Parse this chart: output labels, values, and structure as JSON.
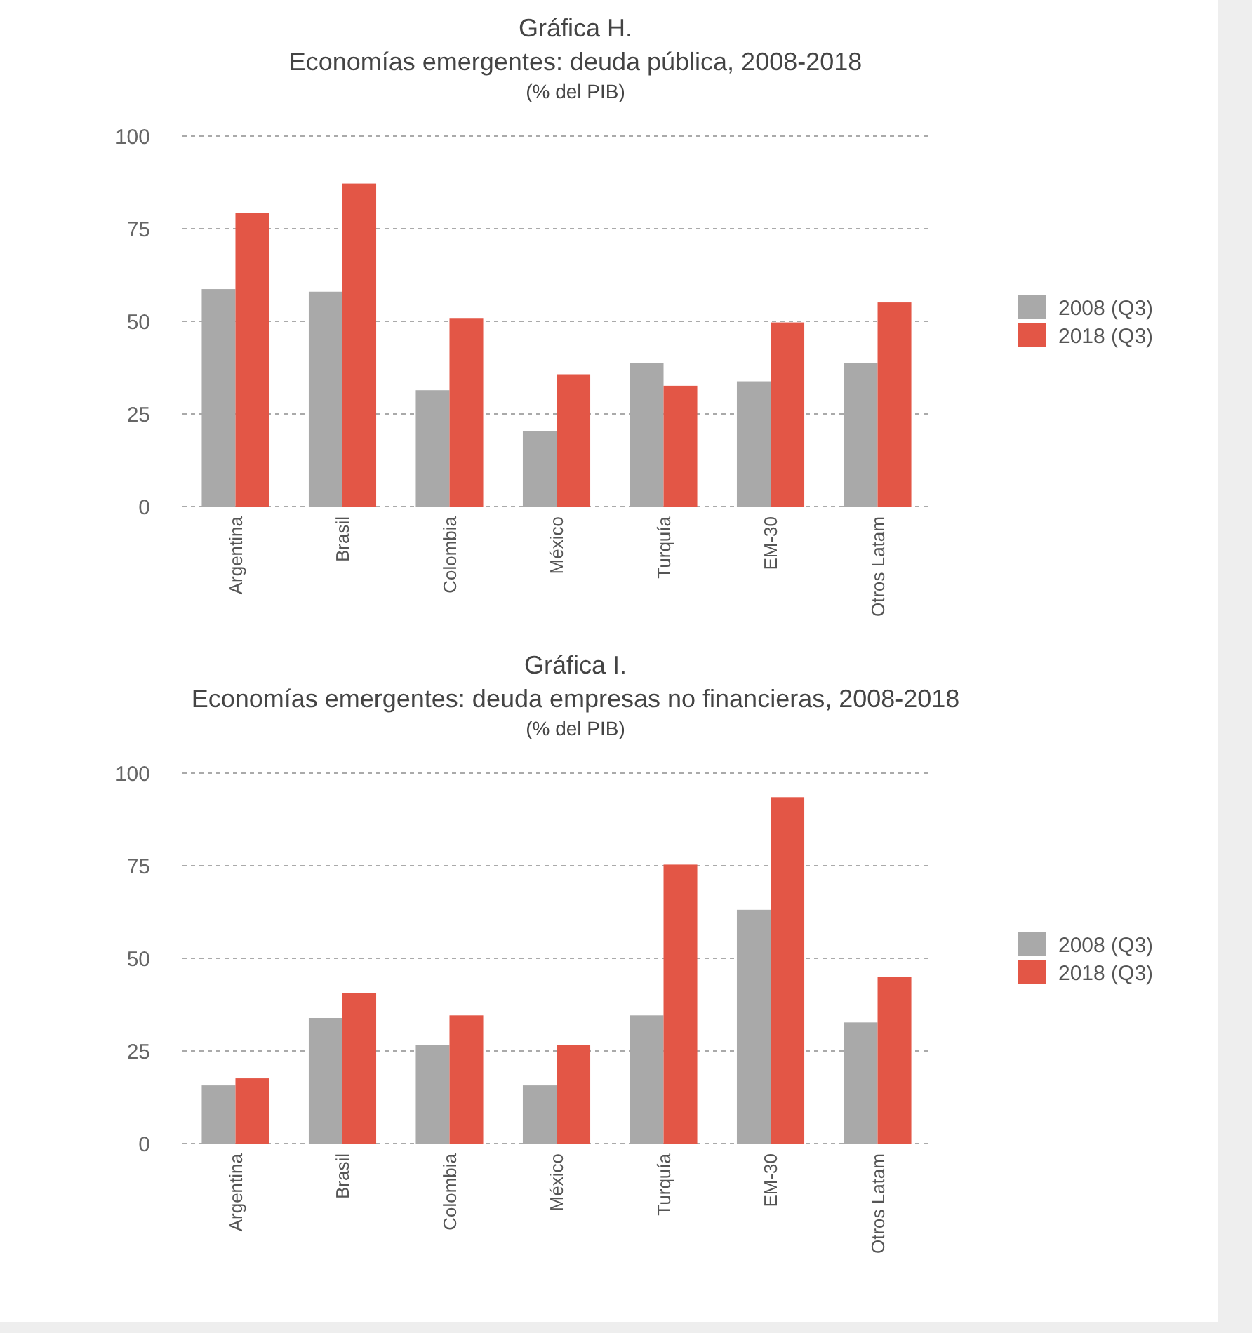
{
  "chart_data": [
    {
      "type": "bar",
      "title": "Gráfica H.",
      "subtitle": "Economías emergentes: deuda pública, 2008-2018",
      "ylabel": "(% del PIB)",
      "categories": [
        "Argentina",
        "Brasil",
        "Colombia",
        "México",
        "Turquía",
        "EM-30",
        "Otros Latam"
      ],
      "series": [
        {
          "name": "2008 (Q3)",
          "color": "#a9a9a9",
          "values": [
            58.7,
            58,
            31.4,
            20.4,
            38.7,
            33.8,
            38.7
          ]
        },
        {
          "name": "2018 (Q3)",
          "color": "#e35646",
          "values": [
            79.3,
            87.2,
            50.9,
            35.7,
            32.6,
            49.7,
            55.1
          ]
        }
      ],
      "ylim": [
        0,
        100
      ],
      "yticks": [
        0,
        25,
        50,
        75,
        100
      ],
      "grid": "y",
      "legend": "right"
    },
    {
      "type": "bar",
      "title": "Gráfica I.",
      "subtitle": "Economías emergentes: deuda empresas no financieras, 2008-2018",
      "ylabel": "(% del PIB)",
      "categories": [
        "Argentina",
        "Brasil",
        "Colombia",
        "México",
        "Turquía",
        "EM-30",
        "Otros Latam"
      ],
      "series": [
        {
          "name": "2008 (Q3)",
          "color": "#a9a9a9",
          "values": [
            15.7,
            33.9,
            26.7,
            15.7,
            34.6,
            63.1,
            32.7
          ]
        },
        {
          "name": "2018 (Q3)",
          "color": "#e35646",
          "values": [
            17.6,
            40.7,
            34.6,
            26.7,
            75.3,
            93.5,
            44.9
          ]
        }
      ],
      "ylim": [
        0,
        100
      ],
      "yticks": [
        0,
        25,
        50,
        75,
        100
      ],
      "grid": "y",
      "legend": "right"
    }
  ]
}
